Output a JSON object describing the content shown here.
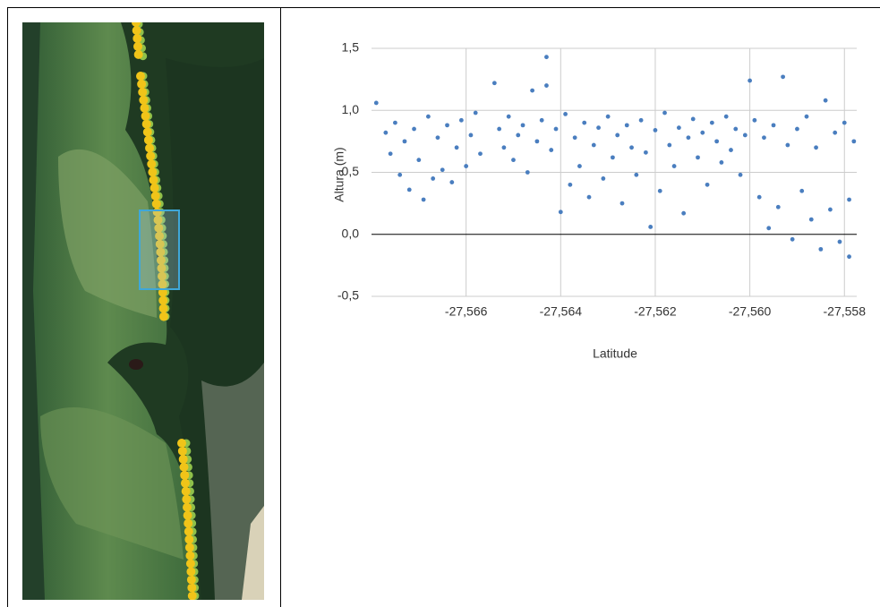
{
  "chart_data": {
    "type": "scatter",
    "x_label": "Latitude",
    "y_label": "Altura (m)",
    "color": "#4a7ebf",
    "grid": true,
    "xlim": [
      -27.568,
      -27.55774
    ],
    "ylim": [
      -0.5,
      1.5
    ],
    "xticks": [
      {
        "value": -27.566,
        "label": "-27,566"
      },
      {
        "value": -27.564,
        "label": "-27,564"
      },
      {
        "value": -27.562,
        "label": "-27,562"
      },
      {
        "value": -27.56,
        "label": "-27,560"
      },
      {
        "value": -27.558,
        "label": "-27,558"
      }
    ],
    "yticks": [
      {
        "value": -0.5,
        "label": "-0,5"
      },
      {
        "value": 0,
        "label": "0,0"
      },
      {
        "value": 0.5,
        "label": "0,5"
      },
      {
        "value": 1,
        "label": "1,0"
      },
      {
        "value": 1.5,
        "label": "1,5"
      }
    ],
    "x": [
      -27.5679,
      -27.5677,
      -27.5676,
      -27.5675,
      -27.5674,
      -27.5673,
      -27.5672,
      -27.5671,
      -27.567,
      -27.5669,
      -27.5668,
      -27.5667,
      -27.5666,
      -27.5665,
      -27.5664,
      -27.5663,
      -27.5662,
      -27.5661,
      -27.566,
      -27.5659,
      -27.5658,
      -27.5657,
      -27.5654,
      -27.5653,
      -27.5652,
      -27.5651,
      -27.565,
      -27.5649,
      -27.5648,
      -27.5647,
      -27.5646,
      -27.5645,
      -27.5644,
      -27.5643,
      -27.5643,
      -27.5642,
      -27.5641,
      -27.564,
      -27.5639,
      -27.5638,
      -27.5637,
      -27.5636,
      -27.5635,
      -27.5634,
      -27.5633,
      -27.5632,
      -27.5631,
      -27.563,
      -27.5629,
      -27.5628,
      -27.5627,
      -27.5626,
      -27.5625,
      -27.5624,
      -27.5623,
      -27.5622,
      -27.5621,
      -27.562,
      -27.5619,
      -27.5618,
      -27.5617,
      -27.5616,
      -27.5615,
      -27.5614,
      -27.5613,
      -27.5612,
      -27.5611,
      -27.561,
      -27.5609,
      -27.5608,
      -27.5607,
      -27.5606,
      -27.5605,
      -27.5604,
      -27.5603,
      -27.5602,
      -27.5601,
      -27.56,
      -27.5599,
      -27.5598,
      -27.5597,
      -27.5596,
      -27.5595,
      -27.5594,
      -27.5593,
      -27.5592,
      -27.5591,
      -27.559,
      -27.5589,
      -27.5588,
      -27.5587,
      -27.5586,
      -27.5585,
      -27.5584,
      -27.5583,
      -27.5582,
      -27.5581,
      -27.558,
      -27.5579,
      -27.5579,
      -27.5578
    ],
    "values": [
      1.06,
      0.82,
      0.65,
      0.9,
      0.48,
      0.75,
      0.36,
      0.85,
      0.6,
      0.28,
      0.95,
      0.45,
      0.78,
      0.52,
      0.88,
      0.42,
      0.7,
      0.92,
      0.55,
      0.8,
      0.98,
      0.65,
      1.22,
      0.85,
      0.7,
      0.95,
      0.6,
      0.8,
      0.88,
      0.5,
      1.16,
      0.75,
      0.92,
      1.43,
      1.2,
      0.68,
      0.85,
      0.18,
      0.97,
      0.4,
      0.78,
      0.55,
      0.9,
      0.3,
      0.72,
      0.86,
      0.45,
      0.95,
      0.62,
      0.8,
      0.25,
      0.88,
      0.7,
      0.48,
      0.92,
      0.66,
      0.06,
      0.84,
      0.35,
      0.98,
      0.72,
      0.55,
      0.86,
      0.17,
      0.78,
      0.93,
      0.62,
      0.82,
      0.4,
      0.9,
      0.75,
      0.58,
      0.95,
      0.68,
      0.85,
      0.48,
      0.8,
      1.24,
      0.92,
      0.3,
      0.78,
      0.05,
      0.88,
      0.22,
      1.27,
      0.72,
      -0.04,
      0.85,
      0.35,
      0.95,
      0.12,
      0.7,
      -0.12,
      1.08,
      0.2,
      0.82,
      -0.06,
      0.9,
      -0.18,
      0.28,
      0.75
    ]
  }
}
